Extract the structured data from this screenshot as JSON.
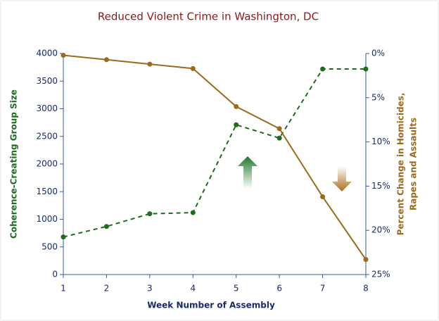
{
  "chart_data": {
    "type": "line",
    "title": "Reduced Violent Crime in Washington, DC",
    "xlabel": "Week Number of Assembly",
    "ylabel": "Coherence-Creating Group Size",
    "y2label": [
      "Percent Change in Homicides,",
      "Rapes and Assaults"
    ],
    "x": [
      1,
      2,
      3,
      4,
      5,
      6,
      7,
      8
    ],
    "xlim": [
      1,
      8
    ],
    "xticks": [
      1,
      2,
      3,
      4,
      5,
      6,
      7,
      8
    ],
    "ylim": [
      0,
      4000
    ],
    "yticks": [
      0,
      500,
      1000,
      1500,
      2000,
      2500,
      3000,
      3500,
      4000
    ],
    "y2lim": [
      25,
      0
    ],
    "y2ticks": [
      {
        "value": 0,
        "label": "0%"
      },
      {
        "value": 5,
        "label": "5%"
      },
      {
        "value": 10,
        "label": "10%"
      },
      {
        "value": 15,
        "label": "15%"
      },
      {
        "value": 20,
        "label": "20%"
      },
      {
        "value": 25,
        "label": "25%"
      }
    ],
    "series": [
      {
        "color": "#1f6b1f",
        "dashed": true,
        "values": [
          680,
          870,
          1100,
          1120,
          2710,
          2470,
          3720,
          3720
        ]
      },
      {
        "color": "#9c6a1c",
        "dashed": false,
        "axis": "y2",
        "values": [
          0.2,
          0.7,
          1.2,
          1.7,
          6.0,
          8.5,
          16.2,
          23.3
        ]
      }
    ]
  }
}
